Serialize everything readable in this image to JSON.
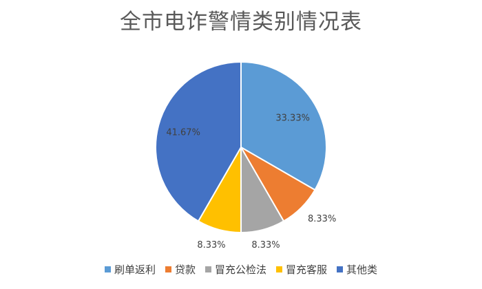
{
  "chart_data": {
    "type": "pie",
    "title": "全市电诈警情类别情况表",
    "categories": [
      "刷单返利",
      "贷款",
      "冒充公检法",
      "冒充客服",
      "其他类"
    ],
    "values": [
      33.33,
      8.33,
      8.33,
      8.33,
      41.67
    ],
    "labels": [
      "33.33%",
      "8.33%",
      "8.33%",
      "8.33%",
      "41.67%"
    ],
    "colors": [
      "#5B9BD5",
      "#ED7D31",
      "#A5A5A5",
      "#FFC000",
      "#4472C4"
    ],
    "start_angle_deg": 0,
    "direction": "clockwise",
    "legend_position": "bottom"
  }
}
